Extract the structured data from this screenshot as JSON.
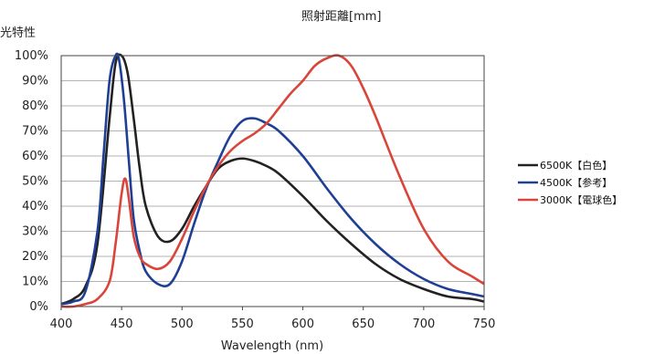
{
  "header": {
    "top_label": "照射距離[mm]",
    "left_label": "光特性"
  },
  "chart_data": {
    "type": "line",
    "title": "",
    "xlabel": "Wavelength (nm)",
    "ylabel": "",
    "xlim": [
      400,
      750
    ],
    "ylim": [
      0,
      100
    ],
    "x_ticks": [
      "400",
      "450",
      "500",
      "550",
      "600",
      "650",
      "700",
      "750"
    ],
    "y_ticks": [
      "0%",
      "10%",
      "20%",
      "30%",
      "40%",
      "50%",
      "60%",
      "70%",
      "80%",
      "90%",
      "100%"
    ],
    "grid": "horizontal",
    "legend_position": "right",
    "series": [
      {
        "name": "6500K【白色】",
        "color": "#222222",
        "x": [
          400,
          410,
          420,
          430,
          440,
          445,
          450,
          455,
          460,
          465,
          470,
          480,
          490,
          500,
          510,
          520,
          530,
          540,
          550,
          560,
          570,
          580,
          600,
          620,
          640,
          660,
          680,
          700,
          720,
          740,
          750
        ],
        "y": [
          1,
          3,
          8,
          25,
          75,
          97,
          100,
          93,
          75,
          55,
          40,
          28,
          26,
          31,
          40,
          48,
          55,
          58,
          59,
          58,
          56,
          53,
          44,
          34,
          25,
          17,
          11,
          7,
          4,
          3,
          2
        ]
      },
      {
        "name": "4500K【参考】",
        "color": "#1f3f95",
        "x": [
          400,
          410,
          420,
          430,
          435,
          440,
          445,
          448,
          452,
          456,
          460,
          465,
          470,
          480,
          490,
          500,
          510,
          520,
          530,
          540,
          550,
          560,
          570,
          580,
          600,
          620,
          640,
          660,
          680,
          700,
          720,
          740,
          750
        ],
        "y": [
          1,
          2,
          6,
          30,
          60,
          90,
          100,
          98,
          82,
          58,
          35,
          22,
          14,
          9,
          9,
          18,
          33,
          47,
          58,
          68,
          74,
          75,
          73,
          70,
          60,
          47,
          35,
          25,
          17,
          11,
          7,
          5,
          4
        ]
      },
      {
        "name": "3000K【電球色】",
        "color": "#d9453a",
        "x": [
          400,
          410,
          420,
          430,
          440,
          445,
          450,
          453,
          456,
          460,
          465,
          470,
          480,
          490,
          500,
          510,
          520,
          530,
          540,
          550,
          560,
          570,
          580,
          590,
          600,
          610,
          620,
          630,
          640,
          650,
          660,
          680,
          700,
          720,
          740,
          750
        ],
        "y": [
          0,
          0,
          1,
          3,
          10,
          25,
          45,
          51,
          43,
          28,
          20,
          17,
          15,
          18,
          27,
          38,
          48,
          56,
          62,
          66,
          69,
          73,
          79,
          85,
          90,
          96,
          99,
          100,
          96,
          87,
          76,
          52,
          31,
          18,
          12,
          9
        ]
      }
    ]
  }
}
